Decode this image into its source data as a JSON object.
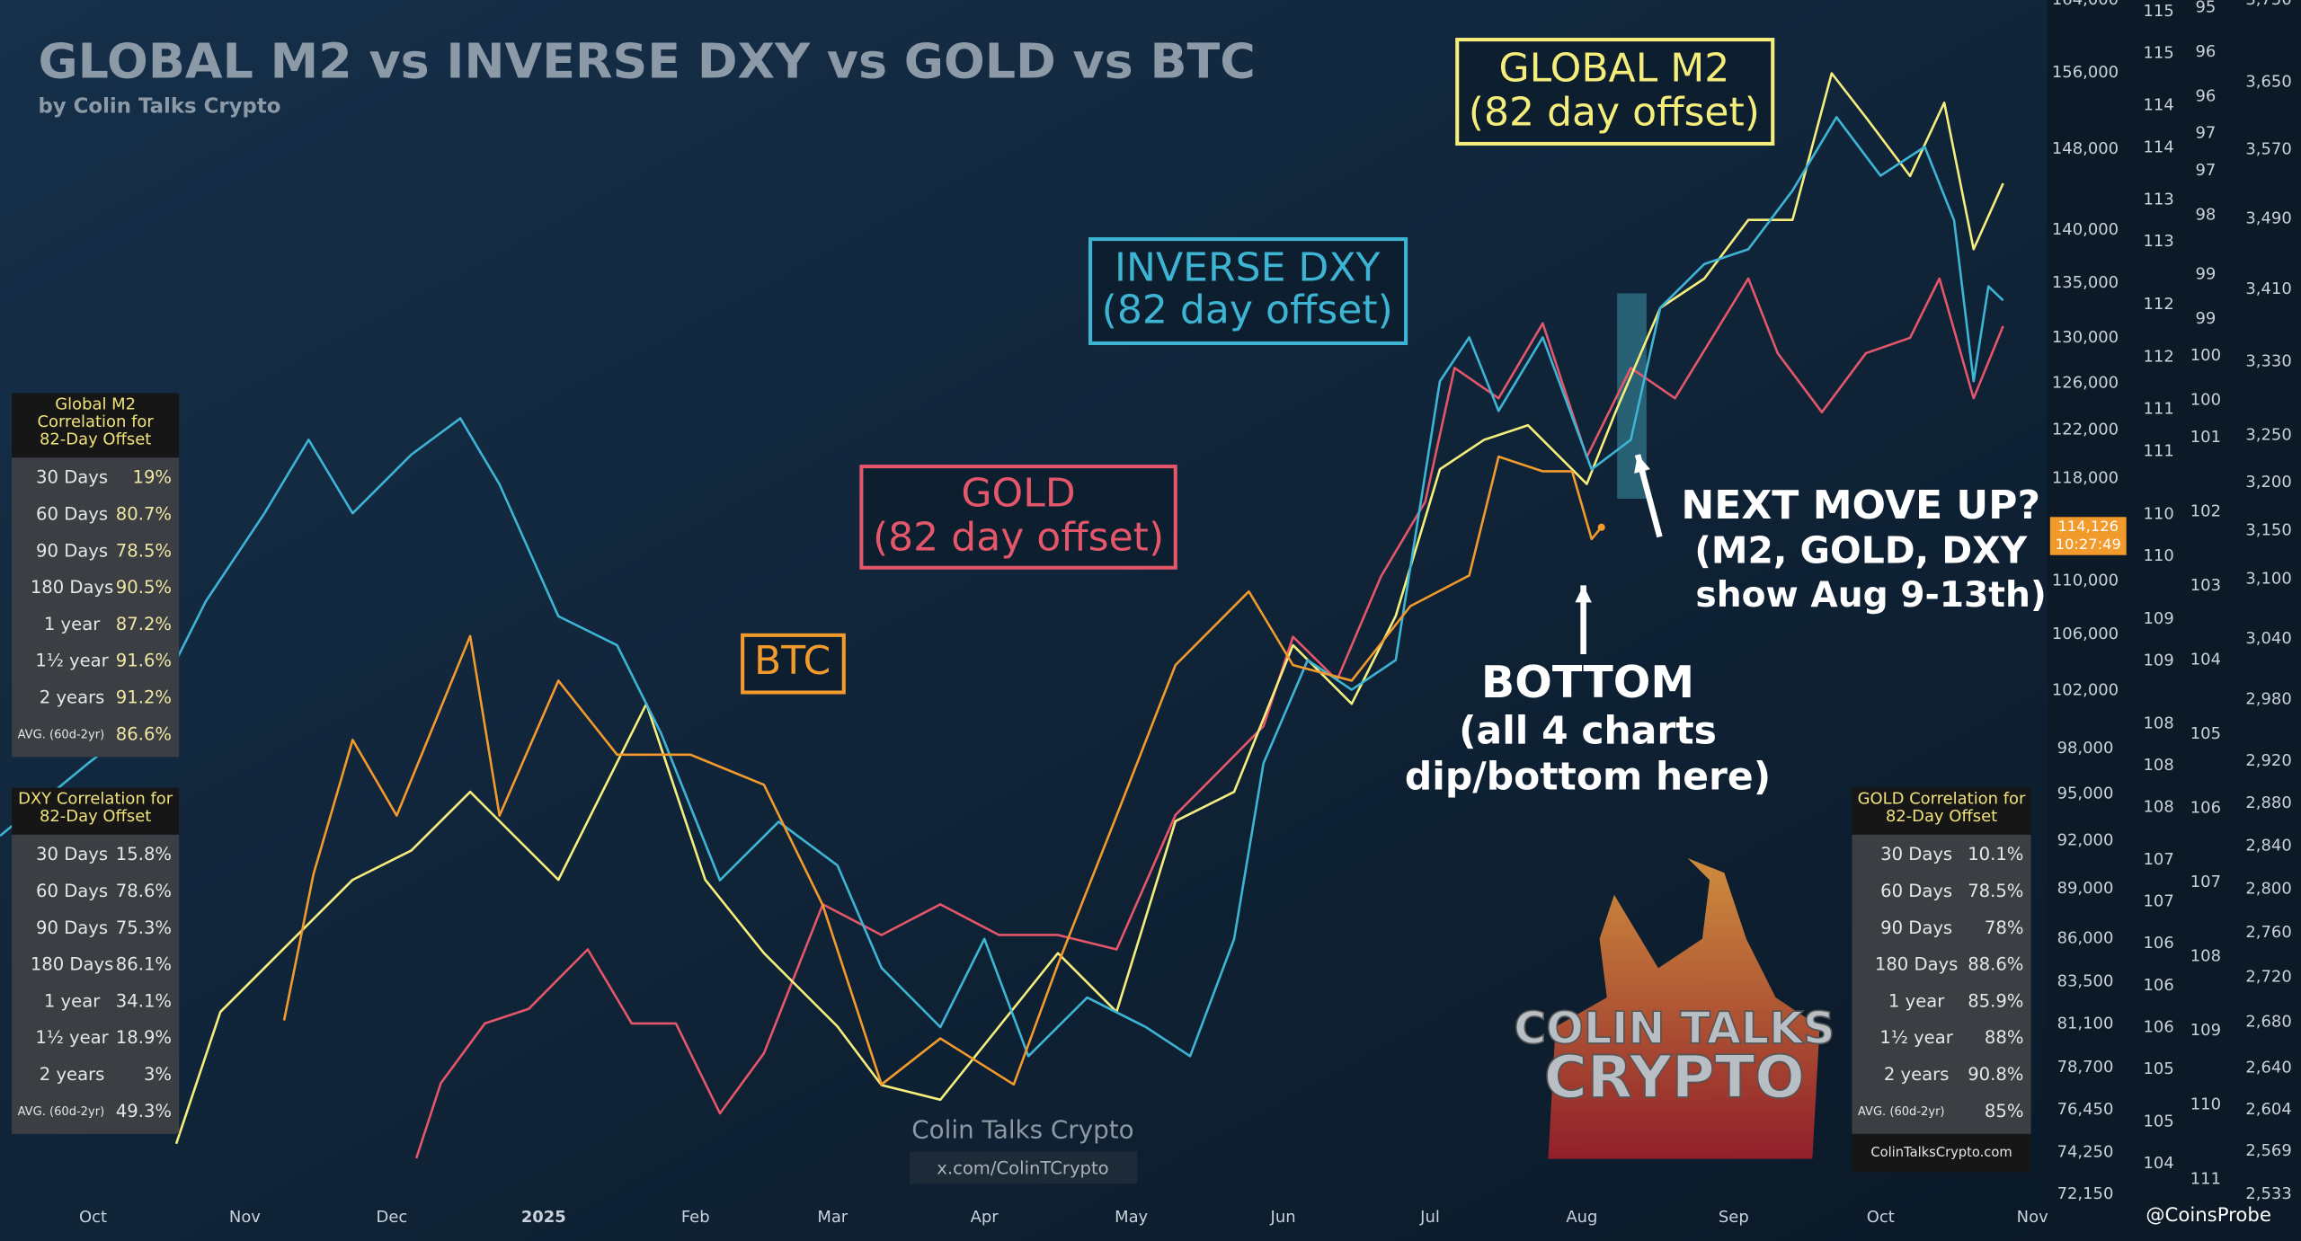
{
  "chart_data": {
    "type": "line",
    "title": "GLOBAL M2 vs INVERSE DXY vs GOLD vs BTC",
    "subtitle": "by Colin Talks Crypto",
    "xlim": [
      -19,
      399
    ],
    "xticks": [
      {
        "value": 0,
        "label": "Oct"
      },
      {
        "value": 31,
        "label": "Nov"
      },
      {
        "value": 61,
        "label": "Dec"
      },
      {
        "value": 92,
        "label": "2025"
      },
      {
        "value": 123,
        "label": "Feb"
      },
      {
        "value": 151,
        "label": "Mar"
      },
      {
        "value": 182,
        "label": "Apr"
      },
      {
        "value": 212,
        "label": "May"
      },
      {
        "value": 243,
        "label": "Jun"
      },
      {
        "value": 273,
        "label": "Jul"
      },
      {
        "value": 304,
        "label": "Aug"
      },
      {
        "value": 335,
        "label": "Sep"
      },
      {
        "value": 365,
        "label": "Oct"
      },
      {
        "value": 396,
        "label": "Nov"
      }
    ],
    "axes": [
      {
        "lim": [
          72150,
          164000
        ],
        "log": true,
        "ticks": [
          {
            "value": 164000,
            "label": "164,000"
          },
          {
            "value": 156000,
            "label": "156,000"
          },
          {
            "value": 148000,
            "label": "148,000"
          },
          {
            "value": 140000,
            "label": "140,000"
          },
          {
            "value": 135000,
            "label": "135,000"
          },
          {
            "value": 130000,
            "label": "130,000"
          },
          {
            "value": 126000,
            "label": "126,000"
          },
          {
            "value": 122000,
            "label": "122,000"
          },
          {
            "value": 118000,
            "label": "118,000"
          },
          {
            "value": 110000,
            "label": "110,000"
          },
          {
            "value": 106000,
            "label": "106,000"
          },
          {
            "value": 102000,
            "label": "102,000"
          },
          {
            "value": 98000,
            "label": "98,000"
          },
          {
            "value": 95000,
            "label": "95,000"
          },
          {
            "value": 92000,
            "label": "92,000"
          },
          {
            "value": 89000,
            "label": "89,000"
          },
          {
            "value": 86000,
            "label": "86,000"
          },
          {
            "value": 83500,
            "label": "83,500"
          },
          {
            "value": 81100,
            "label": "81,100"
          },
          {
            "value": 78700,
            "label": "78,700"
          },
          {
            "value": 76450,
            "label": "76,450"
          },
          {
            "value": 74250,
            "label": "74,250"
          },
          {
            "value": 72150,
            "label": "72,150"
          }
        ]
      },
      {
        "lim": [
          103.91,
          115.31
        ],
        "log": false,
        "ticks": [
          {
            "value": 115.2,
            "label": "115"
          },
          {
            "value": 114.8,
            "label": "115"
          },
          {
            "value": 114.3,
            "label": "114"
          },
          {
            "value": 113.9,
            "label": "114"
          },
          {
            "value": 113.4,
            "label": "113"
          },
          {
            "value": 113.0,
            "label": "113"
          },
          {
            "value": 112.4,
            "label": "112"
          },
          {
            "value": 111.9,
            "label": "112"
          },
          {
            "value": 111.4,
            "label": "111"
          },
          {
            "value": 111.0,
            "label": "111"
          },
          {
            "value": 110.4,
            "label": "110"
          },
          {
            "value": 110.0,
            "label": "110"
          },
          {
            "value": 109.4,
            "label": "109"
          },
          {
            "value": 109.0,
            "label": "109"
          },
          {
            "value": 108.4,
            "label": "108"
          },
          {
            "value": 108.0,
            "label": "108"
          },
          {
            "value": 107.6,
            "label": "108"
          },
          {
            "value": 107.1,
            "label": "107"
          },
          {
            "value": 106.7,
            "label": "107"
          },
          {
            "value": 106.3,
            "label": "106"
          },
          {
            "value": 105.9,
            "label": "106"
          },
          {
            "value": 105.5,
            "label": "106"
          },
          {
            "value": 105.1,
            "label": "105"
          },
          {
            "value": 104.6,
            "label": "105"
          },
          {
            "value": 104.2,
            "label": "104"
          }
        ]
      },
      {
        "lim": [
          111.0,
          94.9
        ],
        "log": false,
        "ticks": [
          {
            "value": 95.0,
            "label": "95"
          },
          {
            "value": 95.6,
            "label": "96"
          },
          {
            "value": 96.2,
            "label": "96"
          },
          {
            "value": 96.7,
            "label": "97"
          },
          {
            "value": 97.2,
            "label": "97"
          },
          {
            "value": 97.8,
            "label": "98"
          },
          {
            "value": 98.6,
            "label": "99"
          },
          {
            "value": 99.2,
            "label": "99"
          },
          {
            "value": 99.7,
            "label": "100"
          },
          {
            "value": 100.3,
            "label": "100"
          },
          {
            "value": 100.8,
            "label": "101"
          },
          {
            "value": 101.8,
            "label": "102"
          },
          {
            "value": 102.8,
            "label": "103"
          },
          {
            "value": 103.8,
            "label": "104"
          },
          {
            "value": 104.8,
            "label": "105"
          },
          {
            "value": 105.8,
            "label": "106"
          },
          {
            "value": 106.8,
            "label": "107"
          },
          {
            "value": 107.8,
            "label": "108"
          },
          {
            "value": 108.8,
            "label": "109"
          },
          {
            "value": 109.8,
            "label": "110"
          },
          {
            "value": 110.8,
            "label": "111"
          }
        ]
      },
      {
        "lim": [
          2533,
          3750
        ],
        "log": true,
        "ticks": [
          {
            "value": 3750,
            "label": "3,750"
          },
          {
            "value": 3650,
            "label": "3,650"
          },
          {
            "value": 3570,
            "label": "3,570"
          },
          {
            "value": 3490,
            "label": "3,490"
          },
          {
            "value": 3410,
            "label": "3,410"
          },
          {
            "value": 3330,
            "label": "3,330"
          },
          {
            "value": 3250,
            "label": "3,250"
          },
          {
            "value": 3200,
            "label": "3,200"
          },
          {
            "value": 3150,
            "label": "3,150"
          },
          {
            "value": 3100,
            "label": "3,100"
          },
          {
            "value": 3040,
            "label": "3,040"
          },
          {
            "value": 2980,
            "label": "2,980"
          },
          {
            "value": 2920,
            "label": "2,920"
          },
          {
            "value": 2880,
            "label": "2,880"
          },
          {
            "value": 2840,
            "label": "2,840"
          },
          {
            "value": 2800,
            "label": "2,800"
          },
          {
            "value": 2760,
            "label": "2,760"
          },
          {
            "value": 2720,
            "label": "2,720"
          },
          {
            "value": 2680,
            "label": "2,680"
          },
          {
            "value": 2640,
            "label": "2,640"
          },
          {
            "value": 2604,
            "label": "2,604"
          },
          {
            "value": 2569,
            "label": "2,569"
          },
          {
            "value": 2533,
            "label": "2,533"
          }
        ]
      }
    ],
    "series": [
      {
        "name": "BTC",
        "color": "#f39a2c",
        "axis": 0,
        "x": [
          39,
          45,
          53,
          62,
          77,
          83,
          95,
          107,
          122,
          137,
          149,
          161,
          173,
          188,
          197,
          209,
          221,
          236,
          245,
          257,
          269,
          281,
          287,
          296,
          302,
          306,
          308
        ],
        "values": [
          81300,
          89900,
          98600,
          93600,
          105900,
          93600,
          102700,
          97600,
          97600,
          95600,
          88000,
          77800,
          80300,
          77800,
          84500,
          93600,
          103800,
          109200,
          103800,
          102700,
          108100,
          110400,
          119800,
          118600,
          118600,
          113200,
          114126
        ],
        "last_value_label": "114,126",
        "last_time": "10:27:49"
      },
      {
        "name": "GOLD",
        "color": "#e4566a",
        "axis": 3,
        "note": "(82 day offset)",
        "x": [
          66,
          71,
          80,
          89,
          101,
          110,
          119,
          128,
          137,
          149,
          161,
          173,
          185,
          197,
          209,
          221,
          230,
          239,
          245,
          254,
          263,
          272,
          278,
          287,
          296,
          305,
          314,
          323,
          338,
          344,
          353,
          362,
          371,
          377,
          384,
          390
        ],
        "values": [
          2563,
          2627,
          2679,
          2692,
          2745,
          2679,
          2679,
          2601,
          2653,
          2786,
          2758,
          2786,
          2758,
          2758,
          2745,
          2869,
          2911,
          2954,
          3042,
          2999,
          3103,
          3180,
          3323,
          3290,
          3372,
          3227,
          3323,
          3290,
          3422,
          3339,
          3275,
          3339,
          3356,
          3422,
          3290,
          3369
        ]
      },
      {
        "name": "GLOBAL M2",
        "color": "#f6ee7c",
        "axis": 1,
        "note": "(82 day offset)",
        "x": [
          17,
          26,
          41,
          53,
          65,
          77,
          86,
          95,
          113,
          125,
          137,
          152,
          161,
          173,
          185,
          197,
          209,
          221,
          233,
          245,
          257,
          266,
          275,
          284,
          293,
          305,
          311,
          320,
          329,
          338,
          347,
          355,
          362,
          371,
          378,
          384,
          390
        ],
        "values": [
          104.39,
          105.65,
          106.35,
          106.91,
          107.19,
          107.75,
          107.33,
          106.91,
          108.59,
          106.91,
          106.21,
          105.51,
          104.95,
          104.81,
          105.51,
          106.21,
          105.65,
          107.47,
          107.75,
          109.15,
          108.59,
          109.43,
          110.83,
          111.11,
          111.25,
          110.69,
          111.39,
          112.37,
          112.65,
          113.21,
          113.21,
          114.61,
          114.19,
          113.63,
          114.33,
          112.93,
          113.56
        ]
      },
      {
        "name": "INVERSE DXY",
        "color": "#3eb4d4",
        "axis": 2,
        "note": "(82 day offset)",
        "x": [
          -19,
          -1,
          11,
          23,
          35,
          44,
          53,
          65,
          75,
          83,
          95,
          107,
          116,
          128,
          140,
          152,
          161,
          173,
          182,
          191,
          203,
          215,
          224,
          233,
          239,
          248,
          257,
          266,
          275,
          281,
          287,
          296,
          306,
          314,
          320,
          329,
          338,
          347,
          356,
          365,
          374,
          380,
          384,
          387,
          390
        ],
        "values": [
          106.17,
          105.19,
          104.59,
          103.01,
          101.82,
          100.83,
          101.82,
          101.03,
          100.54,
          101.43,
          103.21,
          103.6,
          104.79,
          106.77,
          105.98,
          106.57,
          107.95,
          108.75,
          107.56,
          109.14,
          108.35,
          108.75,
          109.14,
          107.56,
          105.19,
          103.8,
          104.2,
          103.8,
          100.04,
          99.45,
          100.44,
          99.45,
          101.23,
          100.83,
          99.05,
          98.46,
          98.26,
          97.47,
          96.48,
          97.27,
          96.88,
          97.87,
          100.04,
          98.76,
          98.95
        ]
      }
    ],
    "annotations": {
      "next_move": [
        "NEXT MOVE UP?",
        "(M2, GOLD, DXY",
        "show Aug 9-13th)"
      ],
      "bottom": [
        "BOTTOM",
        "(all 4 charts",
        "dip/bottom here)"
      ]
    },
    "correlation_tables": [
      {
        "title": [
          "Global M2",
          "Correlation for",
          "82-Day Offset"
        ],
        "rows": [
          [
            "30 Days",
            "19%"
          ],
          [
            "60 Days",
            "80.7%"
          ],
          [
            "90 Days",
            "78.5%"
          ],
          [
            "180 Days",
            "90.5%"
          ],
          [
            "1 year",
            "87.2%"
          ],
          [
            "1½ year",
            "91.6%"
          ],
          [
            "2 years",
            "91.2%"
          ],
          [
            "AVG. (60d-2yr)",
            "86.6%"
          ]
        ]
      },
      {
        "title": [
          "DXY Correlation for",
          "82-Day Offset"
        ],
        "rows": [
          [
            "30 Days",
            "15.8%"
          ],
          [
            "60 Days",
            "78.6%"
          ],
          [
            "90 Days",
            "75.3%"
          ],
          [
            "180 Days",
            "86.1%"
          ],
          [
            "1 year",
            "34.1%"
          ],
          [
            "1½ year",
            "18.9%"
          ],
          [
            "2 years",
            "3%"
          ],
          [
            "AVG. (60d-2yr)",
            "49.3%"
          ]
        ]
      },
      {
        "title": [
          "GOLD Correlation for",
          "82-Day Offset"
        ],
        "rows": [
          [
            "30 Days",
            "10.1%"
          ],
          [
            "60 Days",
            "78.5%"
          ],
          [
            "90 Days",
            "78%"
          ],
          [
            "180 Days",
            "88.6%"
          ],
          [
            "1 year",
            "85.9%"
          ],
          [
            "1½ year",
            "88%"
          ],
          [
            "2 years",
            "90.8%"
          ],
          [
            "AVG. (60d-2yr)",
            "85%"
          ]
        ],
        "footer": "ColinTalksCrypto.com"
      }
    ],
    "watermarks": {
      "name": "Colin Talks Crypto",
      "handle": "x.com/ColinTCrypto",
      "logo": [
        "COLIN TALKS",
        "CRYPTO"
      ],
      "source": "@CoinsProbe"
    }
  }
}
